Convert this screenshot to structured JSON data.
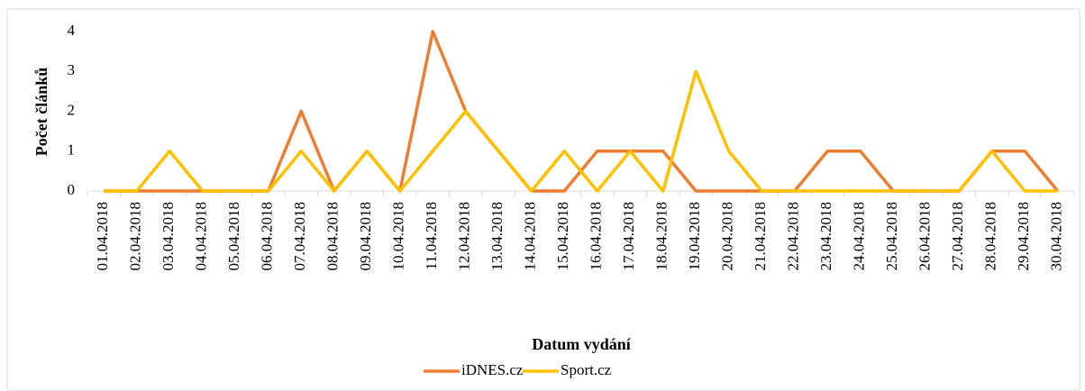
{
  "chart_data": {
    "type": "line",
    "y_label": "Počet článků",
    "x_label": "Datum vydání",
    "categories": [
      "01.04.2018",
      "02.04.2018",
      "03.04.2018",
      "04.04.2018",
      "05.04.2018",
      "06.04.2018",
      "07.04.2018",
      "08.04.2018",
      "09.04.2018",
      "10.04.2018",
      "11.04.2018",
      "12.04.2018",
      "13.04.2018",
      "14.04.2018",
      "15.04.2018",
      "16.04.2018",
      "17.04.2018",
      "18.04.2018",
      "19.04.2018",
      "20.04.2018",
      "21.04.2018",
      "22.04.2018",
      "23.04.2018",
      "24.04.2018",
      "25.04.2018",
      "26.04.2018",
      "27.04.2018",
      "28.04.2018",
      "29.04.2018",
      "30.04.2018"
    ],
    "series": [
      {
        "name": "iDNES.cz",
        "color": "#ed7d31",
        "values": [
          0,
          0,
          0,
          0,
          0,
          0,
          2,
          0,
          1,
          0,
          4,
          2,
          1,
          0,
          0,
          1,
          1,
          1,
          0,
          0,
          0,
          0,
          1,
          1,
          0,
          0,
          0,
          1,
          1,
          0
        ]
      },
      {
        "name": "Sport.cz",
        "color": "#ffc000",
        "values": [
          0,
          0,
          1,
          0,
          0,
          0,
          1,
          0,
          1,
          0,
          1,
          2,
          1,
          0,
          1,
          0,
          1,
          0,
          3,
          1,
          0,
          0,
          0,
          0,
          0,
          0,
          0,
          1,
          0,
          0
        ]
      }
    ],
    "ylim": [
      0,
      4
    ],
    "yticks": [
      0,
      1,
      2,
      3,
      4
    ],
    "grid": false,
    "legend": "bottom"
  }
}
